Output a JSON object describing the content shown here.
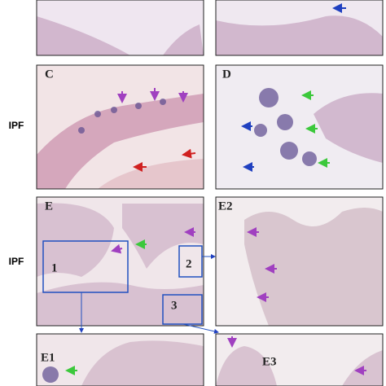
{
  "row_labels": [
    "IPF",
    "IPF"
  ],
  "panels": [
    {
      "label": "C"
    },
    {
      "label": "D"
    },
    {
      "label": "E",
      "insets": [
        "1",
        "2",
        "3"
      ]
    },
    {
      "label": "E2"
    },
    {
      "label": "E1"
    },
    {
      "label": "E3"
    }
  ]
}
